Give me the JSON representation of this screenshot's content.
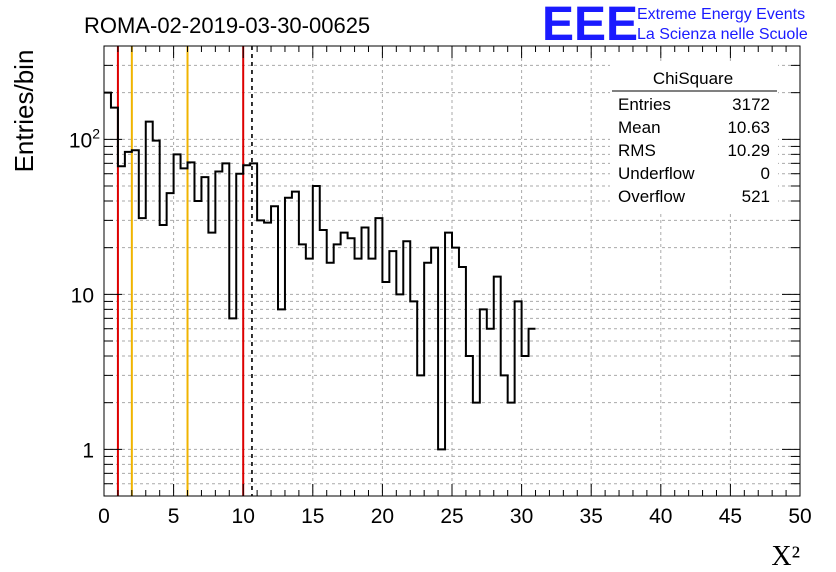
{
  "chart_data": {
    "type": "bar",
    "title": "ROMA-02-2019-03-30-00625",
    "xlabel": "X²",
    "ylabel": "Entries/bin",
    "xlim": [
      0,
      50
    ],
    "ylim": [
      0.5,
      400
    ],
    "log_y": true,
    "grid": true,
    "x_ticks": [
      0,
      5,
      10,
      15,
      20,
      25,
      30,
      35,
      40,
      45,
      50
    ],
    "y_ticks": [
      {
        "value": 1,
        "label": "1"
      },
      {
        "value": 10,
        "label": "10"
      },
      {
        "value": 100,
        "label": "10",
        "exponent": "2"
      }
    ],
    "bin_width": 0.5,
    "values": [
      200,
      160,
      67,
      83,
      85,
      31,
      130,
      98,
      28,
      45,
      80,
      65,
      71,
      40,
      57,
      25,
      62,
      70,
      7,
      60,
      68,
      70,
      30,
      29,
      37,
      8,
      42,
      46,
      21,
      17,
      50,
      26,
      16,
      21,
      25,
      23,
      17,
      27,
      17,
      31,
      12,
      19,
      10,
      22,
      9,
      3,
      16,
      20,
      1,
      25,
      20,
      15,
      4,
      2,
      8,
      6,
      13,
      3,
      2,
      9,
      4,
      6
    ],
    "vertical_lines": [
      {
        "x": 1,
        "color": "#dd0000",
        "style": "solid"
      },
      {
        "x": 2,
        "color": "#f0b400",
        "style": "solid"
      },
      {
        "x": 6,
        "color": "#f0b400",
        "style": "solid"
      },
      {
        "x": 10,
        "color": "#dd0000",
        "style": "solid"
      },
      {
        "x": 10.63,
        "color": "#000000",
        "style": "dashed"
      }
    ],
    "stats_box": {
      "title": "ChiSquare",
      "rows": [
        {
          "label": "Entries",
          "value": "3172"
        },
        {
          "label": "Mean",
          "value": "10.63"
        },
        {
          "label": "RMS",
          "value": "10.29"
        },
        {
          "label": "Underflow",
          "value": "0"
        },
        {
          "label": "Overflow",
          "value": "521"
        }
      ]
    }
  },
  "logo": {
    "mark": "EEE",
    "line1": "Extreme Energy Events",
    "line2": "La Scienza nelle Scuole",
    "color": "#1a1aff"
  }
}
